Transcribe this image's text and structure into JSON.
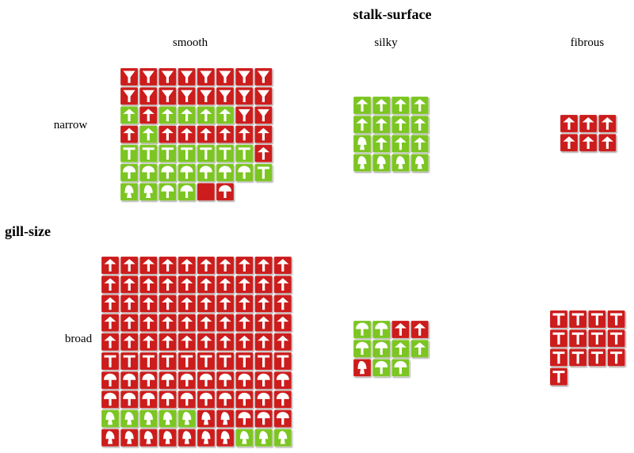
{
  "chart_data": {
    "type": "table",
    "title_columns": "stalk-surface",
    "title_rows": "gill-size",
    "columns": [
      "smooth",
      "silky",
      "fibrous"
    ],
    "rows": [
      "narrow",
      "broad"
    ],
    "colors": {
      "edible": "#7cc520",
      "poisonous": "#cc1b1b"
    },
    "icon_names": {
      "F": "funnel-cap-icon",
      "B": "bell-cap-icon",
      "C": "convex-cap-icon",
      "T": "flat-cap-icon",
      "K": "knobbed-cap-icon"
    },
    "cells": [
      [
        {
          "per_row": 8,
          "start_offset": 0,
          "tiles": "FpFpFpFpFpFpFpFp FpFpFpFpFpFpFpFp BeBpBeBeBeBeFpFp BpBeBpBpBpBpBpBp TeTeTeTeTeTeTeBp CeCeCeCeCeCeCeTe KeKeCeCePpCp"
        },
        {
          "per_row": 4,
          "start_offset": 0,
          "tiles": "BeBeBeBe BeBeBeBe KeBeBeBe KeKeKeKe"
        },
        {
          "per_row": 3,
          "start_offset": 0,
          "tiles": "BpBpBp BpBpBp"
        }
      ],
      [
        {
          "per_row": 10,
          "start_offset": 0,
          "tiles": "BpBpBpBpBpBpBpBpBpBp BpBpBpBpBpBpBpBpBpBp BpBpBpBpBpBpBpBpBpBp BpBpBpBpBpBpBpBpBpBp BpBpBpBpBpBpBpBpBpBp TpTpTpTpTpTpTpTpTpTp CpCpCpCpCpCpCpCpCpCp CpCpCpCpCpCpCpCpCpCp KeKeKeKeKeKpKpCpCpCp KpKpKpKpKpKpKpKeKeKe"
        },
        {
          "per_row": 4,
          "start_offset": 0,
          "tiles": "CeCeBpBp CeCeBeBe KpCeCe"
        },
        {
          "per_row": 4,
          "start_offset": 0,
          "tiles": "TpTpTpTp TpTpTpTp TpTpTpTp Tp"
        }
      ]
    ]
  }
}
